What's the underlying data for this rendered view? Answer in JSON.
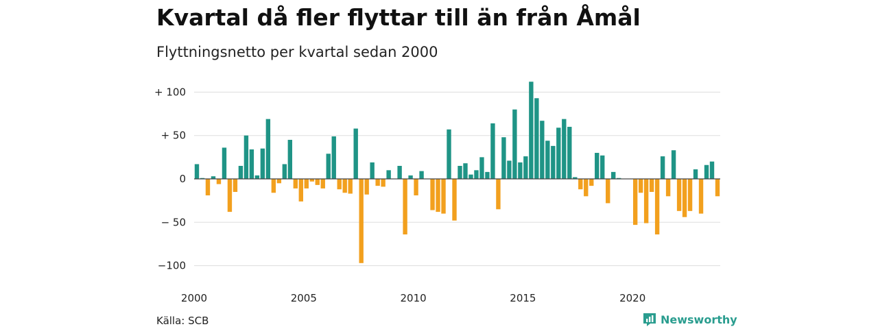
{
  "title": "Kvartal då fler flyttar till än från Åmål",
  "subtitle": "Flyttningsnetto per kvartal sedan 2000",
  "source": "Källa: SCB",
  "brand": "Newsworthy",
  "colors": {
    "positive": "#1f9486",
    "negative": "#f2a01e",
    "grid": "#dddddd",
    "brand": "#2a9d8f"
  },
  "chart_data": {
    "type": "bar",
    "title": "Kvartal då fler flyttar till än från Åmål",
    "subtitle": "Flyttningsnetto per kvartal sedan 2000",
    "xlabel": "",
    "ylabel": "",
    "ylim": [
      -100,
      112
    ],
    "yticks": [
      {
        "value": 100,
        "label": "+ 100"
      },
      {
        "value": 50,
        "label": "+  50"
      },
      {
        "value": 0,
        "label": "0"
      },
      {
        "value": -50,
        "label": "− 50"
      },
      {
        "value": -100,
        "label": "−100"
      }
    ],
    "xticks": [
      "2000",
      "2005",
      "2010",
      "2015",
      "2020"
    ],
    "start_year": 2000,
    "grid": true,
    "values": [
      17,
      1,
      -19,
      3,
      -6,
      36,
      -38,
      -15,
      15,
      50,
      34,
      4,
      35,
      69,
      -16,
      -5,
      17,
      45,
      -11,
      -26,
      -11,
      -3,
      -7,
      -11,
      29,
      49,
      -12,
      -16,
      -17,
      58,
      -97,
      -18,
      19,
      -8,
      -9,
      10,
      0,
      15,
      -64,
      4,
      -19,
      9,
      0,
      -36,
      -38,
      -40,
      57,
      -48,
      15,
      18,
      5,
      10,
      25,
      8,
      64,
      -35,
      48,
      21,
      80,
      19,
      26,
      112,
      93,
      67,
      44,
      38,
      59,
      69,
      60,
      2,
      -12,
      -20,
      -8,
      30,
      27,
      -28,
      8,
      1,
      0,
      0,
      -53,
      -16,
      -51,
      -15,
      -64,
      26,
      -20,
      33,
      -37,
      -44,
      -37,
      11,
      -40,
      16,
      20,
      -20
    ]
  }
}
